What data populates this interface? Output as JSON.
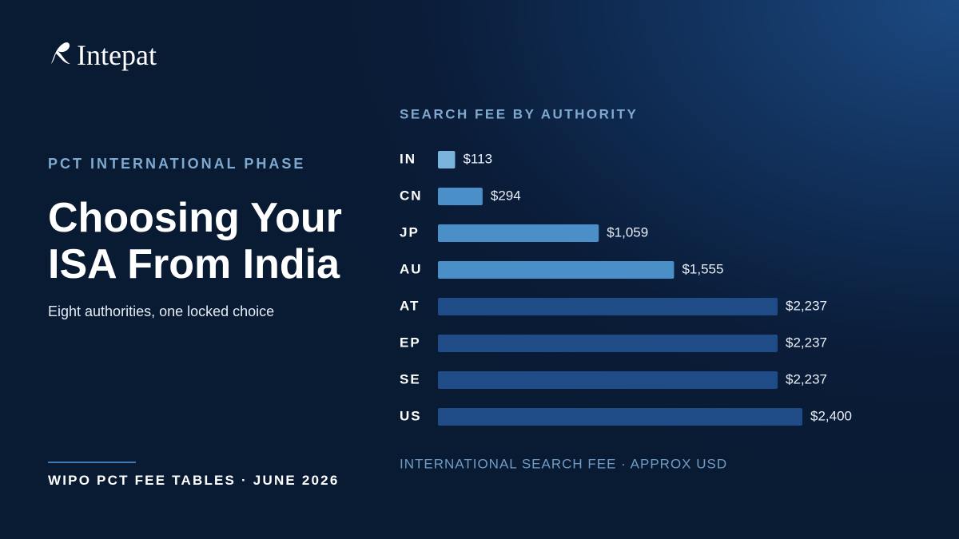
{
  "brand": "Intepat",
  "kicker": "PCT INTERNATIONAL PHASE",
  "title": "Choosing Your ISA From India",
  "subtitle": "Eight authorities, one locked choice",
  "footer": "WIPO PCT FEE TABLES · JUNE 2026",
  "chart_data": {
    "type": "hbar",
    "title": "SEARCH FEE BY AUTHORITY",
    "xlabel": "INTERNATIONAL SEARCH FEE · APPROX USD",
    "categories": [
      "IN",
      "CN",
      "JP",
      "AU",
      "AT",
      "EP",
      "SE",
      "US"
    ],
    "values": [
      113,
      294,
      1059,
      1555,
      2237,
      2237,
      2237,
      2400
    ],
    "value_labels": [
      "$113",
      "$294",
      "$1,059",
      "$1,555",
      "$2,237",
      "$2,237",
      "$2,237",
      "$2,400"
    ],
    "colors": [
      "#7ab3dc",
      "#4a8fc8",
      "#4a8fc8",
      "#4a8fc8",
      "#1f4b86",
      "#1f4b86",
      "#1f4b86",
      "#1f4b86"
    ]
  }
}
